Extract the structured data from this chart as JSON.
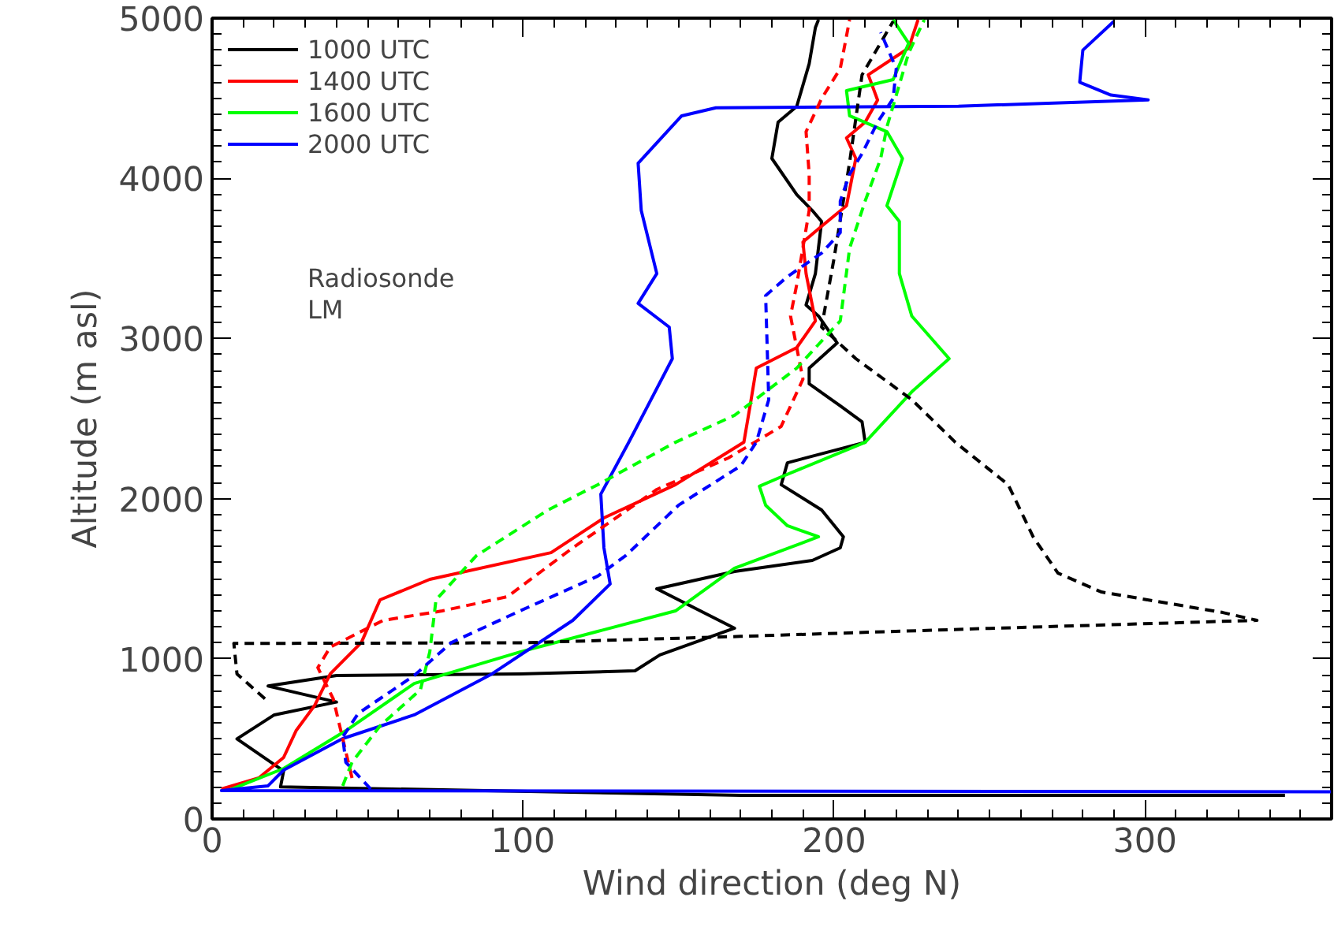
{
  "chart_data": {
    "type": "line",
    "xlabel": "Wind direction (deg N)",
    "ylabel": "Altitude (m asl)",
    "xlim": [
      0,
      360
    ],
    "ylim": [
      0,
      5000
    ],
    "xticks": [
      0,
      100,
      200,
      300
    ],
    "yticks": [
      0,
      1000,
      2000,
      3000,
      4000,
      5000
    ],
    "grid": false,
    "legend": "top left",
    "marker": "none",
    "annotations": [
      "Radiosonde",
      "LM"
    ],
    "series": [
      {
        "name": "1000 UTC",
        "color": "#000000",
        "line_style": "solid",
        "x": [
          345,
          170,
          22,
          23,
          8,
          20,
          40,
          18,
          40,
          99,
          136,
          144,
          168,
          143,
          168,
          193,
          202,
          203,
          196,
          183,
          185,
          210,
          209,
          202,
          192,
          192,
          201,
          195,
          191,
          194,
          196,
          193,
          188,
          180,
          182,
          188,
          192,
          194,
          195
        ],
        "values": [
          148,
          148,
          200,
          300,
          500,
          650,
          730,
          830,
          896,
          906,
          925,
          1024,
          1191,
          1437,
          1545,
          1614,
          1693,
          1762,
          1929,
          2087,
          2224,
          2352,
          2480,
          2579,
          2717,
          2815,
          2972,
          3140,
          3209,
          3405,
          3730,
          3799,
          3898,
          4124,
          4350,
          4449,
          4715,
          4941,
          4990
        ]
      },
      {
        "name": "1400 UTC",
        "color": "#ff0000",
        "line_style": "solid",
        "x": [
          3,
          15,
          23,
          27,
          33,
          38,
          48,
          54,
          70,
          109,
          126,
          149,
          171,
          173,
          175,
          188,
          194,
          191,
          190,
          196,
          204,
          207,
          204,
          210,
          214,
          211,
          224,
          227
        ],
        "values": [
          187,
          256,
          384,
          551,
          709,
          906,
          1102,
          1368,
          1496,
          1663,
          1880,
          2087,
          2352,
          2579,
          2815,
          2943,
          3110,
          3405,
          3602,
          3701,
          3829,
          4124,
          4252,
          4350,
          4488,
          4646,
          4813,
          4990
        ]
      },
      {
        "name": "1600 UTC",
        "color": "#00ff00",
        "line_style": "solid",
        "x": [
          5,
          23,
          43,
          65,
          99,
          124,
          149,
          168,
          195,
          185,
          178,
          176,
          183,
          210,
          225,
          237,
          225,
          221,
          221,
          217,
          222,
          217,
          205,
          204,
          219,
          224,
          219
        ],
        "values": [
          177,
          315,
          551,
          846,
          1043,
          1171,
          1299,
          1565,
          1762,
          1831,
          1959,
          2077,
          2136,
          2352,
          2667,
          2874,
          3140,
          3405,
          3730,
          3829,
          4124,
          4291,
          4390,
          4547,
          4616,
          4843,
          4990
        ]
      },
      {
        "name": "2000 UTC",
        "color": "#0000ff",
        "line_style": "solid",
        "x": [
          360,
          3,
          18,
          23,
          42,
          65,
          90,
          116,
          128,
          126,
          125,
          134,
          148,
          147,
          137,
          143,
          138,
          137,
          151,
          162,
          240,
          301,
          289,
          279,
          280,
          290
        ],
        "values": [
          170,
          177,
          207,
          305,
          502,
          650,
          906,
          1240,
          1467,
          1693,
          2028,
          2352,
          2874,
          3071,
          3219,
          3405,
          3799,
          4094,
          4390,
          4440,
          4450,
          4490,
          4520,
          4600,
          4800,
          4980
        ]
      },
      {
        "color": "#000000",
        "line_style": "dashed",
        "x": [
          17,
          8,
          7,
          100,
          170,
          250,
          336,
          325,
          286,
          272,
          264,
          256,
          239,
          225,
          207,
          196,
          200,
          205,
          209,
          214,
          219
        ],
        "values": [
          750,
          906,
          1096,
          1100,
          1140,
          1190,
          1240,
          1289,
          1417,
          1535,
          1762,
          2087,
          2352,
          2618,
          2874,
          3071,
          3500,
          4100,
          4646,
          4813,
          4980
        ]
      },
      {
        "color": "#ff0000",
        "line_style": "dashed",
        "x": [
          45,
          39,
          34,
          38,
          55,
          74,
          95,
          116,
          143,
          166,
          183,
          190,
          186,
          188,
          192,
          192,
          191,
          196,
          202,
          205
        ],
        "values": [
          256,
          748,
          945,
          1073,
          1240,
          1299,
          1388,
          1693,
          2057,
          2254,
          2451,
          2746,
          3140,
          3337,
          3799,
          4026,
          4291,
          4498,
          4685,
          4990
        ]
      },
      {
        "color": "#00ff00",
        "line_style": "dashed",
        "x": [
          42,
          45,
          54,
          67,
          70,
          72,
          85,
          108,
          124,
          149,
          168,
          188,
          202,
          205,
          210,
          215,
          217,
          224,
          229
        ],
        "values": [
          207,
          354,
          581,
          807,
          1043,
          1368,
          1644,
          1929,
          2087,
          2352,
          2520,
          2815,
          3110,
          3563,
          3858,
          4124,
          4321,
          4783,
          4990
        ]
      },
      {
        "color": "#0000ff",
        "line_style": "dashed",
        "x": [
          51,
          43,
          42,
          47,
          65,
          77,
          99,
          124,
          133,
          150,
          170,
          175,
          179,
          178,
          185,
          196,
          202,
          202,
          205,
          209,
          214,
          219,
          220,
          215
        ],
        "values": [
          187,
          354,
          512,
          659,
          896,
          1102,
          1299,
          1516,
          1644,
          1959,
          2205,
          2352,
          2618,
          3268,
          3386,
          3533,
          3661,
          3858,
          4026,
          4154,
          4350,
          4498,
          4685,
          4911
        ]
      }
    ]
  }
}
